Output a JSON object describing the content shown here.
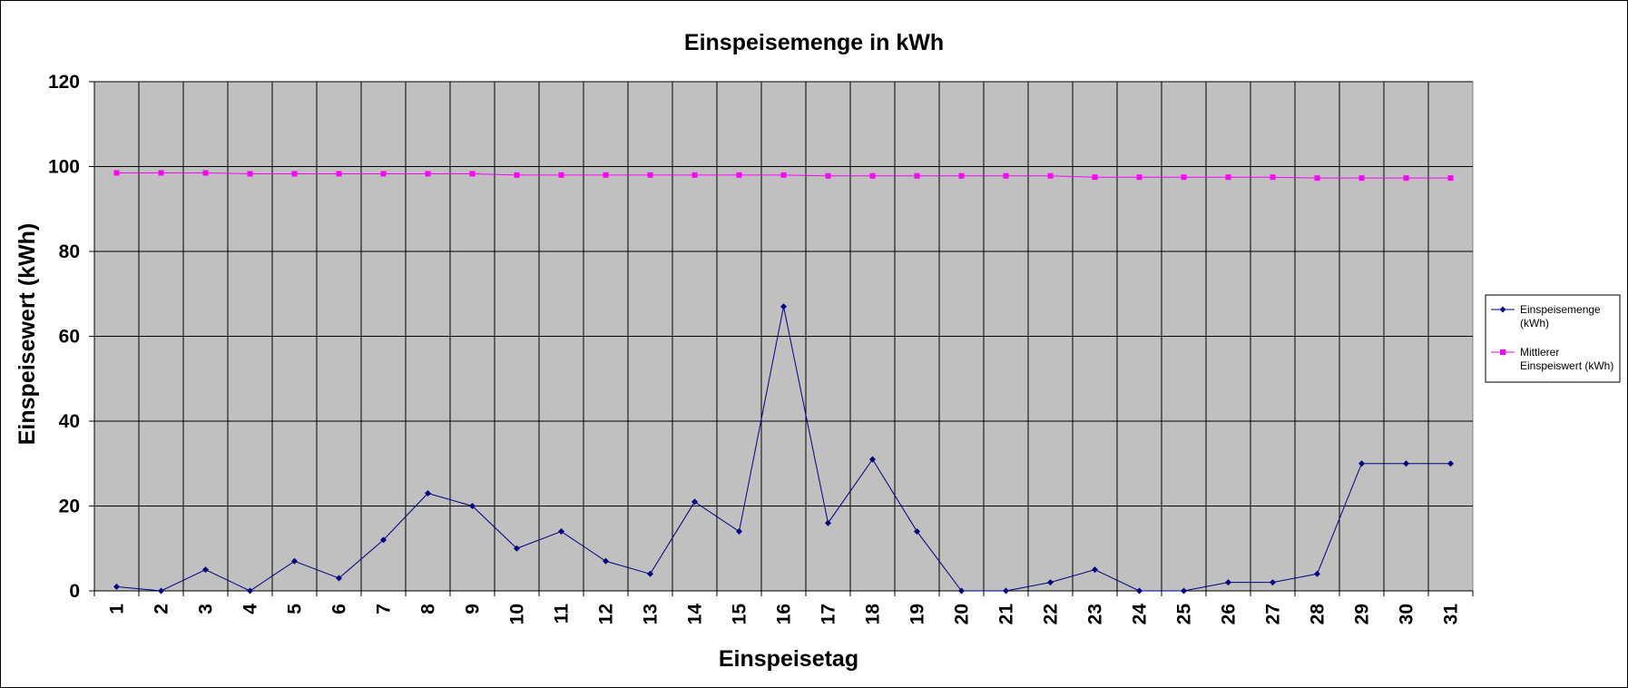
{
  "chart_data": {
    "type": "line",
    "title": "Einspeisemenge in kWh",
    "xlabel": "Einspeisetag",
    "ylabel": "Einspeisewert  (kWh)",
    "categories": [
      "1",
      "2",
      "3",
      "4",
      "5",
      "6",
      "7",
      "8",
      "9",
      "10",
      "11",
      "12",
      "13",
      "14",
      "15",
      "16",
      "17",
      "18",
      "19",
      "20",
      "21",
      "22",
      "23",
      "24",
      "25",
      "26",
      "27",
      "28",
      "29",
      "30",
      "31"
    ],
    "ylim": [
      0,
      120
    ],
    "yticks": [
      "0",
      "20",
      "40",
      "60",
      "80",
      "100",
      "120"
    ],
    "grid": true,
    "legend_position": "right",
    "series": [
      {
        "name": "Einspeisemenge (kWh)",
        "legend_lines": [
          "Einspeisemenge",
          "(kWh)"
        ],
        "color": "#000080",
        "marker": "diamond",
        "values": [
          1,
          0,
          5,
          0,
          7,
          3,
          12,
          23,
          20,
          10,
          14,
          7,
          4,
          21,
          14,
          67,
          16,
          31,
          14,
          0,
          0,
          2,
          5,
          0,
          0,
          2,
          2,
          4,
          30,
          30,
          30
        ]
      },
      {
        "name": "Mittlerer Einspeiswert (kWh)",
        "legend_lines": [
          "Mittlerer",
          "Einspeiswert (kWh)"
        ],
        "color": "#ff00ff",
        "marker": "square",
        "values": [
          98.5,
          98.5,
          98.5,
          98.3,
          98.3,
          98.3,
          98.3,
          98.3,
          98.3,
          98,
          98,
          98,
          98,
          98,
          98,
          98,
          97.8,
          97.8,
          97.8,
          97.8,
          97.8,
          97.8,
          97.5,
          97.5,
          97.5,
          97.5,
          97.5,
          97.3,
          97.3,
          97.3,
          97.3
        ]
      }
    ]
  }
}
